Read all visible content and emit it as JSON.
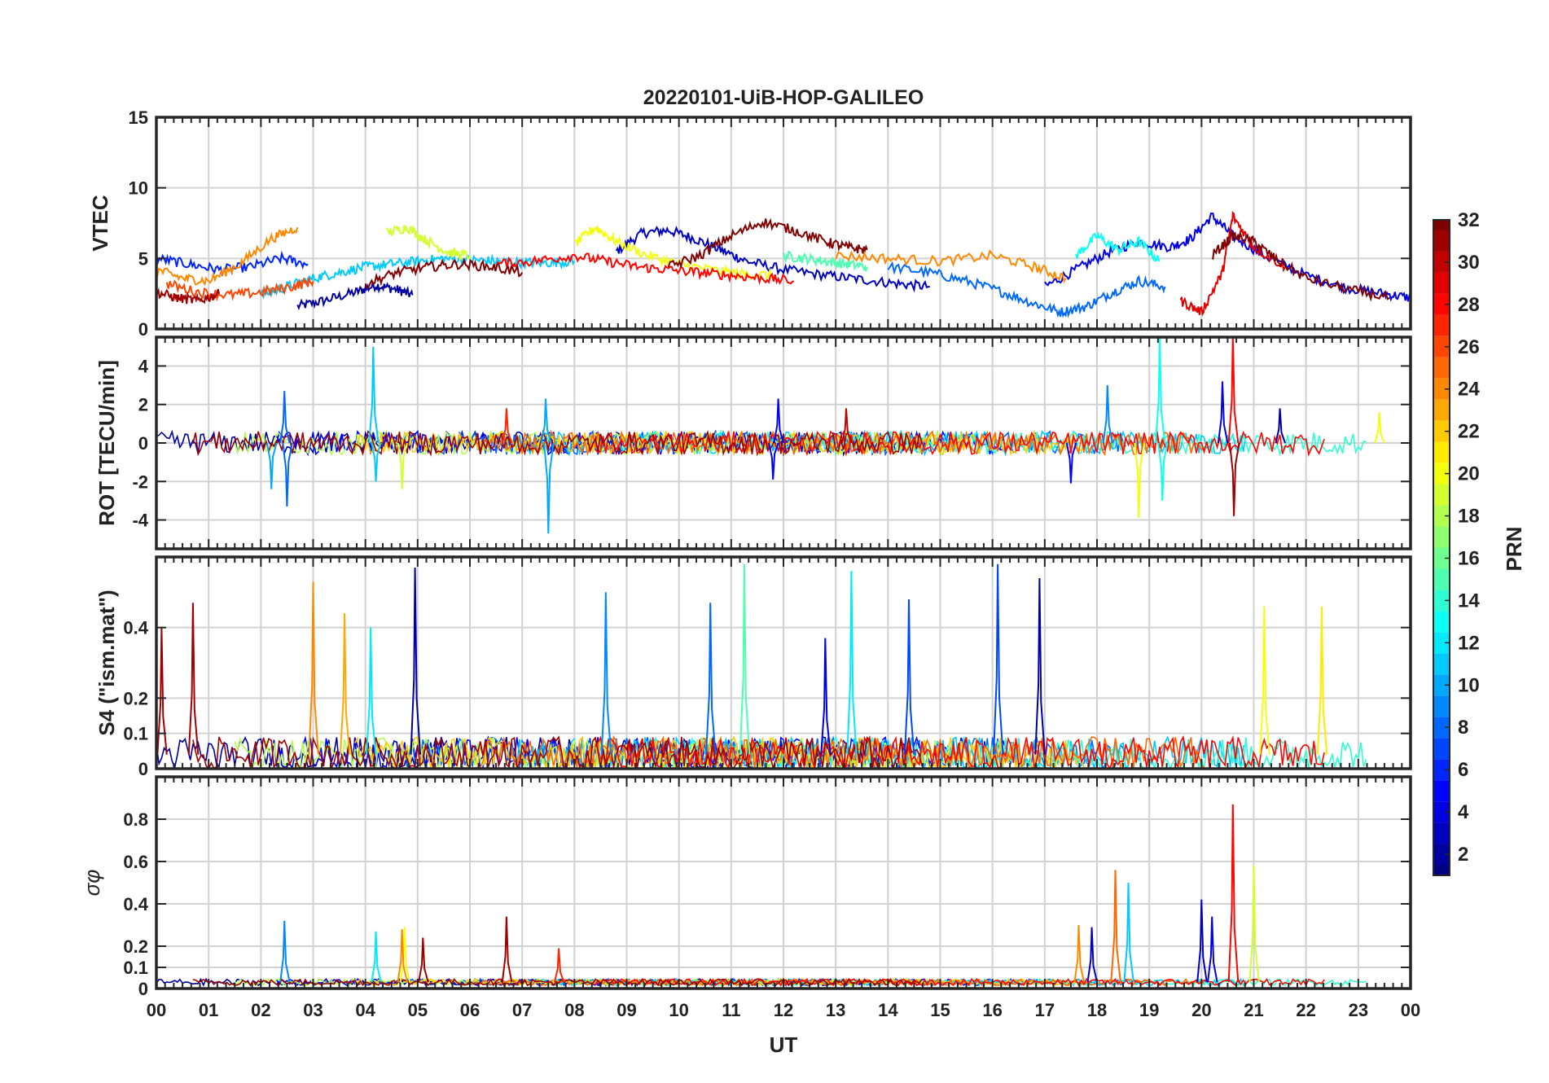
{
  "chart_data": [
    {
      "type": "line",
      "panel": "vtec",
      "title": "20220101-UiB-HOP-GALILEO",
      "ylabel": "VTEC",
      "xlabel": "",
      "ylim": [
        0,
        15
      ],
      "yticks": [
        0,
        5,
        10,
        15
      ],
      "grid": true,
      "x_unit": "UT hour",
      "series": [
        {
          "prn": 2,
          "x": [
            2.7,
            3.2,
            3.8,
            4.2,
            4.6,
            4.9
          ],
          "y": [
            1.6,
            2.0,
            2.6,
            3.1,
            2.8,
            2.4
          ]
        },
        {
          "prn": 3,
          "x": [
            8.8,
            9.3,
            9.8,
            10.3,
            10.8,
            11.3,
            12.0,
            12.8,
            13.5,
            14.2,
            14.8
          ],
          "y": [
            5.5,
            6.8,
            7.0,
            6.4,
            5.6,
            4.8,
            4.2,
            3.8,
            3.5,
            3.2,
            3.0
          ]
        },
        {
          "prn": 4,
          "x": [
            17.0,
            17.6,
            18.2,
            18.8,
            19.4,
            19.8,
            20.2,
            20.6,
            21.2,
            22.0,
            22.8,
            23.5,
            24.0
          ],
          "y": [
            3.0,
            4.2,
            5.4,
            6.2,
            5.8,
            6.4,
            8.0,
            6.6,
            5.2,
            3.8,
            2.9,
            2.5,
            2.2
          ]
        },
        {
          "prn": 6,
          "x": [
            0.0,
            0.6,
            1.2,
            1.8,
            2.4,
            2.9
          ],
          "y": [
            5.0,
            4.6,
            4.2,
            4.4,
            5.0,
            4.6
          ]
        },
        {
          "prn": 8,
          "x": [
            14.0,
            14.8,
            15.5,
            16.2,
            16.8,
            17.3,
            17.8,
            18.3,
            18.8,
            19.3
          ],
          "y": [
            4.4,
            4.0,
            3.4,
            2.6,
            1.8,
            1.2,
            1.6,
            2.6,
            3.4,
            3.0
          ]
        },
        {
          "prn": 11,
          "x": [
            2.0,
            2.5,
            3.0,
            3.5,
            4.0,
            4.5,
            5.0,
            5.5,
            6.0,
            6.5,
            7.0,
            7.5,
            8.0
          ],
          "y": [
            2.4,
            3.0,
            3.6,
            4.0,
            4.4,
            4.6,
            4.8,
            5.0,
            4.9,
            4.8,
            4.7,
            4.7,
            4.8
          ]
        },
        {
          "prn": 13,
          "x": [
            17.6,
            18.0,
            18.4,
            18.8,
            19.2
          ],
          "y": [
            5.2,
            6.6,
            5.6,
            6.2,
            4.8
          ]
        },
        {
          "prn": 15,
          "x": [
            12.0,
            12.4,
            12.8,
            13.2,
            13.6
          ],
          "y": [
            5.2,
            5.0,
            4.8,
            4.6,
            4.4
          ]
        },
        {
          "prn": 19,
          "x": [
            4.4,
            4.8,
            5.2,
            5.6,
            6.0
          ],
          "y": [
            6.8,
            7.2,
            6.2,
            5.4,
            5.2
          ]
        },
        {
          "prn": 20,
          "x": [
            8.0,
            8.4,
            8.8,
            9.4,
            10.0,
            10.6,
            11.2,
            11.8
          ],
          "y": [
            6.0,
            7.2,
            6.2,
            5.2,
            4.6,
            4.2,
            3.9,
            3.8
          ]
        },
        {
          "prn": 24,
          "x": [
            0.0,
            0.5,
            1.0,
            1.6,
            2.2,
            2.7
          ],
          "y": [
            4.2,
            3.6,
            3.4,
            4.6,
            6.4,
            7.2
          ]
        },
        {
          "prn": 24,
          "x": [
            13.0,
            14.0,
            15.0,
            16.0,
            16.8,
            17.4
          ],
          "y": [
            5.2,
            5.0,
            4.8,
            5.2,
            4.4,
            3.6
          ]
        },
        {
          "prn": 26,
          "x": [
            0.2,
            0.8,
            1.4,
            2.0,
            2.6,
            3.0
          ],
          "y": [
            3.2,
            2.6,
            2.4,
            2.6,
            3.0,
            3.4
          ]
        },
        {
          "prn": 28,
          "x": [
            6.5,
            7.2,
            8.0,
            8.6,
            9.2,
            9.8,
            10.4,
            11.0,
            11.6,
            12.2
          ],
          "y": [
            4.6,
            4.8,
            5.2,
            4.8,
            4.4,
            4.2,
            4.0,
            3.8,
            3.6,
            3.4
          ]
        },
        {
          "prn": 29,
          "x": [
            19.6,
            20.0,
            20.4,
            20.6,
            21.0,
            21.6
          ],
          "y": [
            2.0,
            1.2,
            4.0,
            8.0,
            5.8,
            4.4
          ]
        },
        {
          "prn": 31,
          "x": [
            0.0,
            0.4,
            0.8,
            1.2
          ],
          "y": [
            2.6,
            2.2,
            2.0,
            2.5
          ]
        },
        {
          "prn": 32,
          "x": [
            4.0,
            4.6,
            5.2,
            5.8,
            6.4,
            7.0
          ],
          "y": [
            3.2,
            4.0,
            4.4,
            4.6,
            4.4,
            4.0
          ]
        },
        {
          "prn": 32,
          "x": [
            9.8,
            10.4,
            11.0,
            11.6,
            12.2,
            12.8,
            13.2,
            13.6
          ],
          "y": [
            4.4,
            5.2,
            6.6,
            7.6,
            7.0,
            6.2,
            5.8,
            5.6
          ]
        },
        {
          "prn": 32,
          "x": [
            20.2,
            20.6,
            21.0,
            21.4,
            22.0,
            22.8,
            23.6
          ],
          "y": [
            5.2,
            6.6,
            6.2,
            5.0,
            3.6,
            2.8,
            2.2
          ]
        }
      ]
    },
    {
      "type": "line",
      "panel": "rot",
      "ylabel": "ROT [TECU/min]",
      "xlabel": "",
      "ylim": [
        -5.5,
        5.5
      ],
      "yticks": [
        -4,
        -2,
        0,
        2,
        4
      ],
      "grid": true,
      "x_unit": "UT hour",
      "spikes": [
        {
          "prn": 8,
          "x": 2.45,
          "y": 2.7
        },
        {
          "prn": 8,
          "x": 2.5,
          "y": -3.3
        },
        {
          "prn": 10,
          "x": 2.2,
          "y": -2.4
        },
        {
          "prn": 11,
          "x": 4.15,
          "y": 5.0
        },
        {
          "prn": 11,
          "x": 4.2,
          "y": -2.0
        },
        {
          "prn": 19,
          "x": 4.7,
          "y": -2.4
        },
        {
          "prn": 27,
          "x": 6.7,
          "y": 1.8
        },
        {
          "prn": 10,
          "x": 7.5,
          "y": -4.7
        },
        {
          "prn": 10,
          "x": 7.45,
          "y": 2.3
        },
        {
          "prn": 5,
          "x": 11.9,
          "y": 2.3
        },
        {
          "prn": 5,
          "x": 11.8,
          "y": -1.9
        },
        {
          "prn": 30,
          "x": 13.2,
          "y": 1.8
        },
        {
          "prn": 5,
          "x": 17.5,
          "y": -2.1
        },
        {
          "prn": 9,
          "x": 18.2,
          "y": 3.0
        },
        {
          "prn": 20,
          "x": 18.8,
          "y": -3.9
        },
        {
          "prn": 13,
          "x": 19.2,
          "y": 5.5
        },
        {
          "prn": 13,
          "x": 19.25,
          "y": -3.0
        },
        {
          "prn": 28,
          "x": 20.6,
          "y": 5.5
        },
        {
          "prn": 31,
          "x": 20.62,
          "y": -3.8
        },
        {
          "prn": 4,
          "x": 20.4,
          "y": 3.2
        },
        {
          "prn": 2,
          "x": 21.5,
          "y": 1.8
        },
        {
          "prn": 20,
          "x": 23.4,
          "y": 1.6
        }
      ]
    },
    {
      "type": "line",
      "panel": "s4",
      "ylabel": "S4 (\"ism.mat\")",
      "xlabel": "",
      "ylim": [
        0,
        0.6
      ],
      "yticks": [
        0,
        0.1,
        0.2,
        0.4
      ],
      "ytick_labels": [
        "0",
        "0.1",
        "0.2",
        "0.4"
      ],
      "grid": true,
      "x_unit": "UT hour",
      "spikes": [
        {
          "prn": 31,
          "x": 0.1,
          "y": 0.4
        },
        {
          "prn": 31,
          "x": 0.7,
          "y": 0.47
        },
        {
          "prn": 24,
          "x": 3.0,
          "y": 0.53
        },
        {
          "prn": 23,
          "x": 3.6,
          "y": 0.44
        },
        {
          "prn": 12,
          "x": 4.1,
          "y": 0.4
        },
        {
          "prn": 2,
          "x": 4.95,
          "y": 0.57
        },
        {
          "prn": 9,
          "x": 8.6,
          "y": 0.5
        },
        {
          "prn": 8,
          "x": 10.6,
          "y": 0.47
        },
        {
          "prn": 15,
          "x": 11.25,
          "y": 0.58
        },
        {
          "prn": 4,
          "x": 12.8,
          "y": 0.37
        },
        {
          "prn": 12,
          "x": 13.3,
          "y": 0.56
        },
        {
          "prn": 7,
          "x": 14.4,
          "y": 0.48
        },
        {
          "prn": 7,
          "x": 16.1,
          "y": 0.58
        },
        {
          "prn": 2,
          "x": 16.9,
          "y": 0.54
        },
        {
          "prn": 20,
          "x": 21.2,
          "y": 0.46
        },
        {
          "prn": 21,
          "x": 22.3,
          "y": 0.46
        }
      ]
    },
    {
      "type": "line",
      "panel": "sigma_phi",
      "ylabel": "σφ",
      "xlabel": "UT",
      "ylim": [
        0,
        1.0
      ],
      "yticks": [
        0,
        0.1,
        0.2,
        0.4,
        0.6,
        0.8
      ],
      "ytick_labels": [
        "0",
        "0.1",
        "0.2",
        "0.4",
        "0.6",
        "0.8"
      ],
      "grid": true,
      "x_unit": "UT hour",
      "spikes": [
        {
          "prn": 9,
          "x": 2.45,
          "y": 0.32
        },
        {
          "prn": 12,
          "x": 4.2,
          "y": 0.27
        },
        {
          "prn": 20,
          "x": 4.75,
          "y": 0.29
        },
        {
          "prn": 24,
          "x": 4.7,
          "y": 0.28
        },
        {
          "prn": 31,
          "x": 5.1,
          "y": 0.24
        },
        {
          "prn": 31,
          "x": 6.7,
          "y": 0.34
        },
        {
          "prn": 27,
          "x": 7.7,
          "y": 0.19
        },
        {
          "prn": 24,
          "x": 17.65,
          "y": 0.3
        },
        {
          "prn": 3,
          "x": 17.9,
          "y": 0.29
        },
        {
          "prn": 25,
          "x": 18.35,
          "y": 0.56
        },
        {
          "prn": 11,
          "x": 18.6,
          "y": 0.5
        },
        {
          "prn": 3,
          "x": 20.0,
          "y": 0.42
        },
        {
          "prn": 4,
          "x": 20.2,
          "y": 0.34
        },
        {
          "prn": 28,
          "x": 20.6,
          "y": 0.87
        },
        {
          "prn": 19,
          "x": 21.0,
          "y": 0.58
        }
      ]
    }
  ],
  "x_axis": {
    "range": [
      0,
      24
    ],
    "tick_labels": [
      "00",
      "01",
      "02",
      "03",
      "04",
      "05",
      "06",
      "07",
      "08",
      "09",
      "10",
      "11",
      "12",
      "13",
      "14",
      "15",
      "16",
      "17",
      "18",
      "19",
      "20",
      "21",
      "22",
      "23",
      "00"
    ]
  },
  "colorbar": {
    "label": "PRN",
    "range": [
      1,
      32
    ],
    "ticks": [
      2,
      4,
      6,
      8,
      10,
      12,
      14,
      16,
      18,
      20,
      22,
      24,
      26,
      28,
      30,
      32
    ],
    "tick_labels": [
      "2",
      "4",
      "6",
      "8",
      "10",
      "12",
      "14",
      "16",
      "18",
      "20",
      "22",
      "24",
      "26",
      "28",
      "30",
      "32"
    ],
    "colormap": "jet"
  }
}
